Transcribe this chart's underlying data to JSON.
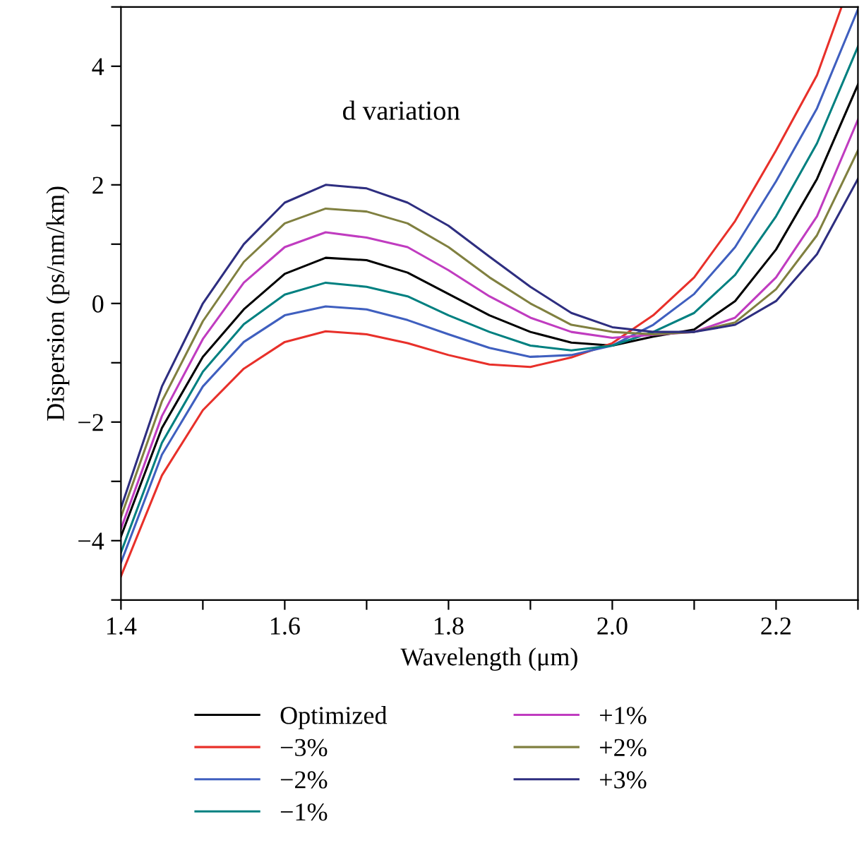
{
  "chart_data": {
    "type": "line",
    "xlabel": "Wavelength (μm)",
    "ylabel": "Dispersion (ps/nm/km)",
    "annotations": [
      "d variation"
    ],
    "x": [
      1.4,
      1.45,
      1.5,
      1.55,
      1.6,
      1.65,
      1.7,
      1.75,
      1.8,
      1.85,
      1.9,
      1.95,
      2.0,
      2.05,
      2.1,
      2.15,
      2.2,
      2.25,
      2.3
    ],
    "series": [
      {
        "name": "Optimized",
        "color": "#000000",
        "values": [
          -3.93,
          -2.1,
          -0.9,
          -0.1,
          0.5,
          0.77,
          0.73,
          0.52,
          0.16,
          -0.2,
          -0.48,
          -0.66,
          -0.71,
          -0.56,
          -0.44,
          0.04,
          0.91,
          2.1,
          3.69
        ]
      },
      {
        "name": "−3%",
        "color": "#e8302a",
        "x": [
          1.4,
          1.45,
          1.5,
          1.55,
          1.6,
          1.65,
          1.7,
          1.75,
          1.8,
          1.85,
          1.9,
          1.95,
          2.0,
          2.05,
          2.1,
          2.15,
          2.2,
          2.25,
          2.28
        ],
        "values": [
          -4.6,
          -2.9,
          -1.8,
          -1.1,
          -0.65,
          -0.47,
          -0.52,
          -0.67,
          -0.87,
          -1.03,
          -1.07,
          -0.91,
          -0.67,
          -0.2,
          0.44,
          1.39,
          2.58,
          3.85,
          5.0
        ]
      },
      {
        "name": "−2%",
        "color": "#3f5fbf",
        "values": [
          -4.37,
          -2.55,
          -1.4,
          -0.65,
          -0.2,
          -0.05,
          -0.1,
          -0.28,
          -0.52,
          -0.75,
          -0.9,
          -0.87,
          -0.71,
          -0.36,
          0.16,
          0.95,
          2.06,
          3.29,
          4.96
        ]
      },
      {
        "name": "−1%",
        "color": "#008080",
        "values": [
          -4.2,
          -2.35,
          -1.15,
          -0.35,
          0.15,
          0.35,
          0.28,
          0.12,
          -0.2,
          -0.48,
          -0.71,
          -0.79,
          -0.71,
          -0.48,
          -0.16,
          0.48,
          1.47,
          2.7,
          4.33
        ]
      },
      {
        "name": "+1%",
        "color": "#c03cc0",
        "values": [
          -3.8,
          -1.9,
          -0.6,
          0.35,
          0.95,
          1.2,
          1.11,
          0.95,
          0.56,
          0.12,
          -0.24,
          -0.48,
          -0.58,
          -0.53,
          -0.48,
          -0.24,
          0.44,
          1.47,
          3.1
        ]
      },
      {
        "name": "+2%",
        "color": "#808040",
        "values": [
          -3.6,
          -1.65,
          -0.3,
          0.7,
          1.35,
          1.6,
          1.55,
          1.35,
          0.95,
          0.44,
          0.0,
          -0.36,
          -0.48,
          -0.52,
          -0.48,
          -0.32,
          0.24,
          1.15,
          2.58
        ]
      },
      {
        "name": "+3%",
        "color": "#2e2e80",
        "values": [
          -3.45,
          -1.4,
          0.0,
          1.0,
          1.7,
          2.0,
          1.94,
          1.7,
          1.31,
          0.79,
          0.28,
          -0.16,
          -0.4,
          -0.48,
          -0.48,
          -0.36,
          0.04,
          0.83,
          2.1
        ]
      }
    ],
    "xlim": [
      1.4,
      2.3
    ],
    "ylim": [
      -5,
      5
    ],
    "xticks": [
      1.4,
      {
        "value": 1.5,
        "label": null
      },
      1.6,
      {
        "value": 1.7,
        "label": null
      },
      1.8,
      {
        "value": 1.9,
        "label": null
      },
      {
        "value": 2.0,
        "label": "2.0"
      },
      {
        "value": 2.1,
        "label": null
      },
      2.2,
      {
        "value": 2.3,
        "label": null
      }
    ],
    "yticks": [
      {
        "value": -5,
        "label": null
      },
      {
        "value": -4,
        "label": "−4"
      },
      {
        "value": -3,
        "label": null
      },
      {
        "value": -2,
        "label": "−2"
      },
      {
        "value": -1,
        "label": null
      },
      0,
      {
        "value": 1,
        "label": null
      },
      2,
      {
        "value": 3,
        "label": null
      },
      4,
      {
        "value": 5,
        "label": null
      }
    ],
    "grid": false,
    "legend": "bottom",
    "marker": "none",
    "line_style": "solid"
  }
}
